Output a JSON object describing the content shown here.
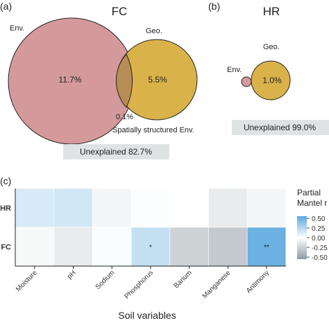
{
  "chart_data": [
    {
      "type": "venn",
      "panel_label": "(a)",
      "title": "FC",
      "sets": [
        {
          "name": "Env.",
          "unique_percent": "11.7%",
          "color": "#d4999b"
        },
        {
          "name": "Geo.",
          "unique_percent": "5.5%",
          "color": "#d9b24a"
        }
      ],
      "intersection": {
        "percent": "0.1%",
        "label": "Spatially structured Env."
      },
      "unexplained": "Unexplained 82.7%"
    },
    {
      "type": "venn",
      "panel_label": "(b)",
      "title": "HR",
      "sets": [
        {
          "name": "Env.",
          "unique_percent": "",
          "color": "#d4999b"
        },
        {
          "name": "Geo.",
          "unique_percent": "1.0%",
          "color": "#d9b24a"
        }
      ],
      "unexplained": "Unexplained 99.0%"
    },
    {
      "type": "heatmap",
      "panel_label": "(c)",
      "xlabel": "Soil variables",
      "x": [
        "Moisture",
        "pH",
        "Sodium",
        "Phosphorus",
        "Barium",
        "Manganese",
        "Antimony"
      ],
      "y": [
        "HR",
        "FC"
      ],
      "values": [
        [
          0.12,
          0.14,
          -0.05,
          0.01,
          0.0,
          -0.1,
          -0.05
        ],
        [
          -0.03,
          -0.1,
          0.02,
          0.18,
          -0.22,
          -0.27,
          0.45
        ]
      ],
      "annotations": [
        {
          "row": "FC",
          "col": "Phosphorus",
          "text": "*"
        },
        {
          "row": "FC",
          "col": "Antimony",
          "text": "**"
        }
      ],
      "legend": {
        "title_lines": [
          "Partial",
          "Mantel r"
        ],
        "ticks": [
          "0.50",
          "0.25",
          "0.00",
          "-0.25",
          "-0.50"
        ],
        "range": [
          -0.5,
          0.5
        ],
        "colors": {
          "low": "#8f9ba2",
          "mid": "#ffffff",
          "high": "#5aa8de"
        }
      }
    }
  ]
}
